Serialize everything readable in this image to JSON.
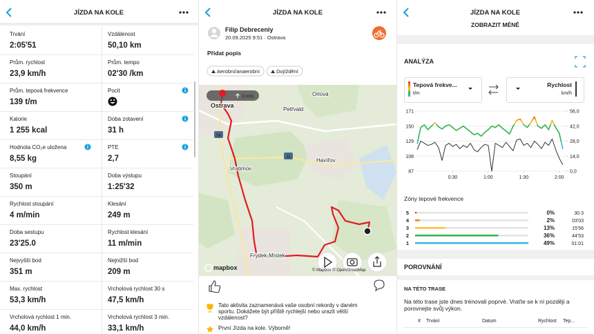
{
  "stats_screen": {
    "header": {
      "title": "JÍZDA NA KOLE"
    },
    "rows": [
      [
        {
          "label": "Trvání",
          "value": "2:05'51"
        },
        {
          "label": "Vzdálenost",
          "value": "50,10 km"
        }
      ],
      [
        {
          "label": "Prům. rychlost",
          "value": "23,9 km/h"
        },
        {
          "label": "Prům. tempo",
          "value": "02'30 /km"
        }
      ],
      [
        {
          "label": "Prům. tepová frekvence",
          "value": "139 t/m"
        },
        {
          "label": "Pocit",
          "info": true
        }
      ],
      [
        {
          "label": "Kalorie",
          "value": "1 255 kcal"
        },
        {
          "label": "Doba zotavení",
          "value": "31 h",
          "info": true
        }
      ],
      [
        {
          "label": "Hodnota CO₂e uložena",
          "value": "8,55 kg",
          "info": true
        },
        {
          "label": "PTE",
          "value": "2,7",
          "info": true
        }
      ],
      [
        {
          "label": "Stoupání",
          "value": "350 m"
        },
        {
          "label": "Doba výstupu",
          "value": "1:25'32"
        }
      ],
      [
        {
          "label": "Rychlost stoupání",
          "value": "4 m/min"
        },
        {
          "label": "Klesání",
          "value": "249 m"
        }
      ],
      [
        {
          "label": "Doba sestupu",
          "value": "23'25.0"
        },
        {
          "label": "Rychlost klesání",
          "value": "11 m/min"
        }
      ],
      [
        {
          "label": "Nejvyšší bod",
          "value": "351 m"
        },
        {
          "label": "Nejnižší bod",
          "value": "209 m"
        }
      ],
      [
        {
          "label": "Max. rychlost",
          "value": "53,3 km/h"
        },
        {
          "label": "Vrcholová rychlost 30 s",
          "value": "47,5 km/h"
        }
      ],
      [
        {
          "label": "Vrcholová rychlost 1 min.",
          "value": "44,0 km/h"
        },
        {
          "label": "Vrcholová rychlost 3 min.",
          "value": "33,1 km/h"
        }
      ]
    ]
  },
  "map_screen": {
    "header": {
      "title": "JÍZDA NA KOLE"
    },
    "user": {
      "name": "Filip Debreceniy",
      "date": "20.09.2025 9:51 · Ostrava"
    },
    "add_description": "Přidat popis",
    "tags": [
      "Aerobní/anaerobní",
      "Dojíždění"
    ],
    "map": {
      "places": [
        "Ostrava",
        "Orlová",
        "Petřvald",
        "Vratimov",
        "Havířov",
        "Frýdek-Místek"
      ],
      "road_numbers": [
        "56",
        "11"
      ],
      "badge": "3 m/s",
      "logo": "mapbox",
      "attribution": "© Mapbox © OpenStreetMap"
    },
    "achievements": [
      {
        "lines": [
          "Tato aktivita zaznamenává vaše osobní rekordy v daném",
          "sportu. Dokážete být příště rychlejší nebo urazit větší",
          "vzdálenost?"
        ]
      },
      {
        "lines": [
          "První Jízda na kole. Výborně!"
        ]
      }
    ]
  },
  "analysis_screen": {
    "header": {
      "title": "JÍZDA NA KOLE"
    },
    "show_less": "ZOBRAZIT MÉNĚ",
    "analysis_title": "ANALÝZA",
    "comparison_title": "POROVNÁNÍ",
    "route_title": "NA TÉTO TRASE",
    "route_text": [
      "Na této trase jste dnes trénovali poprvé. Vraťte se k ní později a",
      "porovnejte svůj výkon."
    ],
    "table_headers": [
      "#",
      "Trvání",
      "Datum",
      "Rychlost",
      "Tep..."
    ]
  },
  "chart_data": [
    {
      "type": "line",
      "grid": true,
      "x": [
        0,
        3,
        6,
        9,
        12,
        15,
        18,
        21,
        24,
        27,
        30,
        33,
        36,
        39,
        42,
        45,
        48,
        51,
        54,
        57,
        60,
        63,
        66,
        69,
        72,
        75,
        78,
        81,
        84,
        87,
        90,
        93,
        96,
        99,
        102,
        105,
        108,
        111,
        114,
        117,
        120,
        123
      ],
      "xlim": [
        0,
        126
      ],
      "xticks": [
        {
          "value": 30,
          "label": "0:30"
        },
        {
          "value": 60,
          "label": "1:00"
        },
        {
          "value": 90,
          "label": "1:30"
        },
        {
          "value": 120,
          "label": "2:00"
        }
      ],
      "ylim": [
        87,
        171
      ],
      "yticks": [
        87,
        108,
        129,
        150,
        171
      ],
      "y2lim": [
        0,
        56
      ],
      "y2ticks": [
        {
          "value": 0,
          "label": "0,0"
        },
        {
          "value": 14,
          "label": "14,0"
        },
        {
          "value": 28,
          "label": "28,0"
        },
        {
          "value": 42,
          "label": "42,0"
        },
        {
          "value": 56,
          "label": "56,0"
        }
      ],
      "series": [
        {
          "name": "Tepová frekve...",
          "unit": "t/m",
          "color": "#2eb34a",
          "values": [
            125,
            148,
            152,
            145,
            150,
            155,
            149,
            146,
            150,
            152,
            148,
            144,
            147,
            150,
            146,
            142,
            138,
            140,
            136,
            141,
            145,
            150,
            148,
            152,
            147,
            143,
            139,
            150,
            158,
            160,
            152,
            148,
            155,
            163,
            150,
            147,
            152,
            145,
            158,
            148,
            140,
            118
          ]
        },
        {
          "name": "Rychlost",
          "unit": "km/h",
          "color": "#333333",
          "axis": "y2",
          "values": [
            20,
            28,
            26,
            24,
            25,
            27,
            22,
            10,
            24,
            26,
            23,
            25,
            21,
            24,
            22,
            26,
            20,
            18,
            22,
            25,
            24,
            0,
            26,
            24,
            22,
            27,
            23,
            19,
            29,
            30,
            24,
            26,
            22,
            28,
            25,
            21,
            27,
            24,
            30,
            20,
            12,
            6
          ]
        }
      ]
    },
    {
      "type": "bar",
      "title": "Zóny tepové frekvence",
      "categories": [
        "5",
        "4",
        "3",
        "2",
        "1"
      ],
      "values": [
        0,
        2,
        13,
        36,
        49
      ],
      "value_labels": [
        "0%",
        "2%",
        "13%",
        "36%",
        "49%"
      ],
      "durations": [
        "30.3",
        "03'03",
        "15'56",
        "44'53",
        "01:01"
      ],
      "colors": [
        "#e53935",
        "#f57c00",
        "#f9c22e",
        "#2eb34a",
        "#3bb4e5"
      ],
      "xlim": [
        0,
        49
      ]
    }
  ]
}
